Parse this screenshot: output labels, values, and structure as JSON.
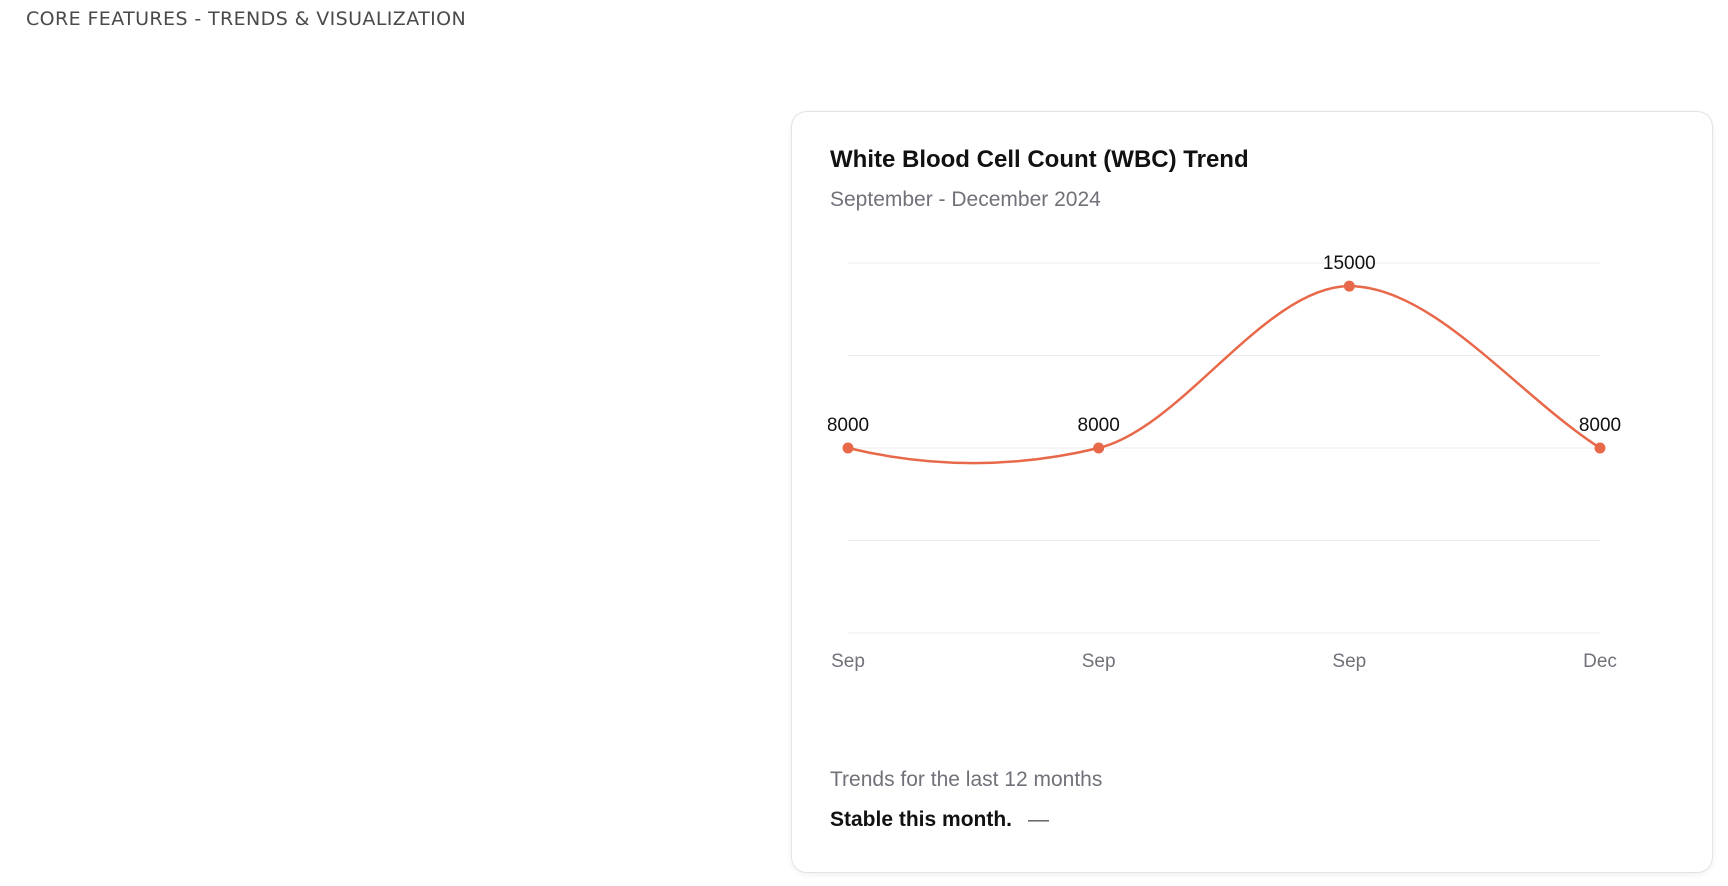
{
  "section": {
    "label": "CORE FEATURES - TRENDS & VISUALIZATION"
  },
  "card": {
    "title": "White Blood Cell Count (WBC) Trend",
    "subtitle": "September - December 2024",
    "footer_trend": "Trends for the last 12 months",
    "footer_status": "Stable this month.",
    "status_dash": "—"
  },
  "colors": {
    "line": "#e8694a",
    "grid": "#ececec",
    "muted_text": "#71717a"
  },
  "chart_data": {
    "type": "line",
    "categories": [
      "Sep",
      "Sep",
      "Sep",
      "Dec"
    ],
    "series": [
      {
        "values": [
          8000,
          8000,
          15000,
          8000
        ]
      }
    ],
    "data_labels": [
      "8000",
      "8000",
      "15000",
      "8000"
    ],
    "ylim": [
      0,
      16000
    ],
    "grid": "horizontal",
    "curve": "smooth"
  }
}
